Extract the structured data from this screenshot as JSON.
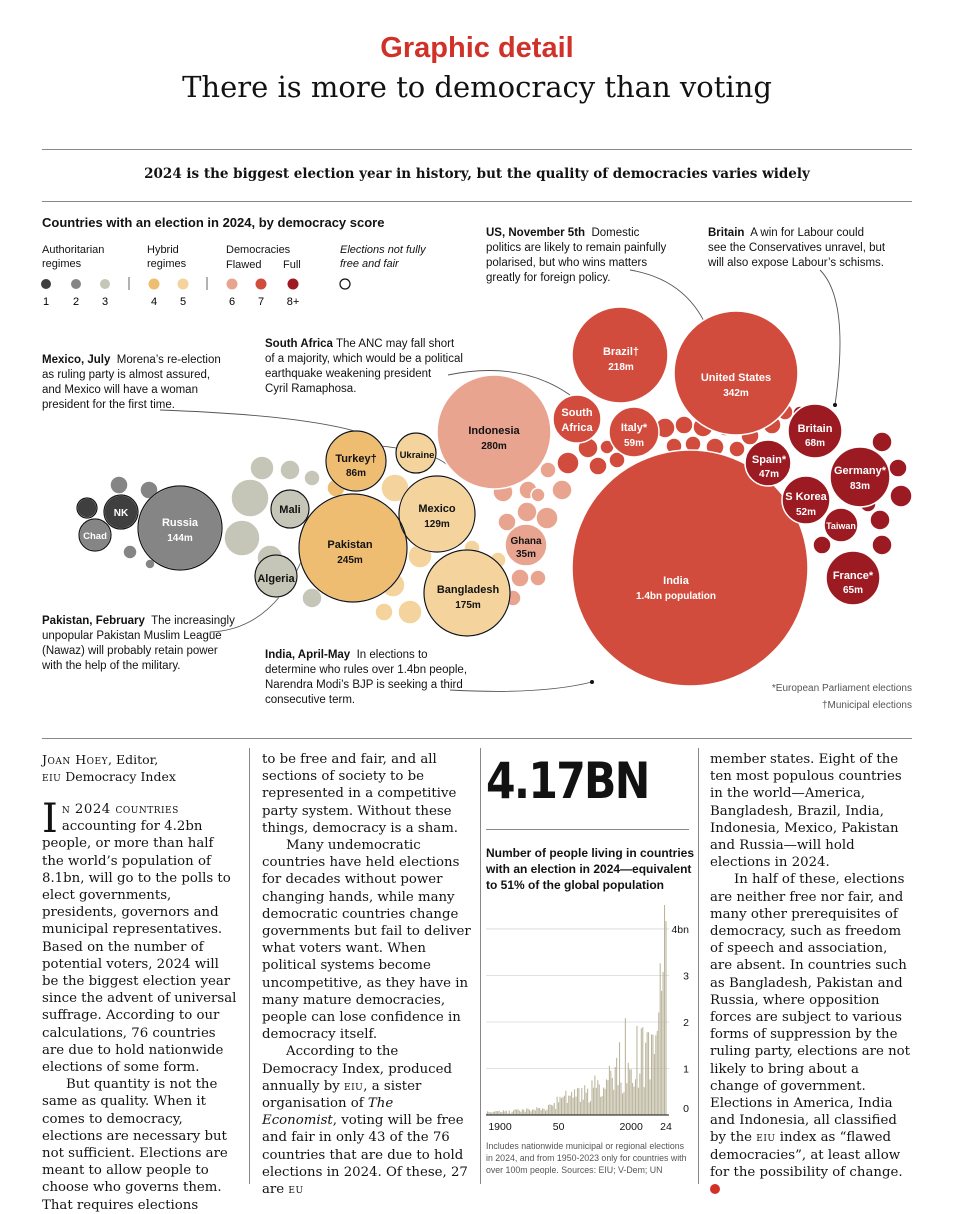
{
  "header": {
    "kicker": "Graphic detail",
    "headline": "There is more to democracy than voting",
    "subtitle": "2024 is the biggest election year in history, but the quality of democracies varies widely"
  },
  "colors": {
    "accent": "#d0322a",
    "score_1": "#3f3f3f",
    "score_2": "#858585",
    "score_3": "#c6c6b8",
    "score_4": "#efbd72",
    "score_5": "#f4d39c",
    "score_6": "#e9a490",
    "score_7": "#d24c3d",
    "score_8": "#9c1a22"
  },
  "chart_data": {
    "type": "bubble",
    "title": "Countries with an election in 2024, by democracy score",
    "legend": {
      "groups": [
        {
          "label_lines": [
            "Authoritarian",
            "regimes"
          ],
          "scores": [
            "1",
            "2",
            "3"
          ]
        },
        {
          "label_lines": [
            "Hybrid",
            "regimes"
          ],
          "scores": [
            "4",
            "5"
          ]
        },
        {
          "label_lines": [
            "Democracies"
          ],
          "sublabels": [
            "Flawed",
            "Full"
          ],
          "scores": [
            "6",
            "7",
            "8+"
          ]
        }
      ],
      "unfree_label_lines": [
        "Elections not fully",
        "free and fair"
      ]
    },
    "labeled_bubbles": [
      {
        "name": "India",
        "value_label": "1.4bn population",
        "population_m": 1400,
        "score": "7"
      },
      {
        "name": "United States",
        "value_label": "342m",
        "population_m": 342,
        "score": "7"
      },
      {
        "name": "Indonesia",
        "value_label": "280m",
        "population_m": 280,
        "score": "6"
      },
      {
        "name": "Pakistan",
        "value_label": "245m",
        "population_m": 245,
        "score": "4"
      },
      {
        "name": "Brazil†",
        "value_label": "218m",
        "population_m": 218,
        "score": "7"
      },
      {
        "name": "Bangladesh",
        "value_label": "175m",
        "population_m": 175,
        "score": "5"
      },
      {
        "name": "Russia",
        "value_label": "144m",
        "population_m": 144,
        "score": "2"
      },
      {
        "name": "Mexico",
        "value_label": "129m",
        "population_m": 129,
        "score": "5"
      },
      {
        "name": "Turkey†",
        "value_label": "86m",
        "population_m": 86,
        "score": "4"
      },
      {
        "name": "Germany*",
        "value_label": "83m",
        "population_m": 83,
        "score": "8+"
      },
      {
        "name": "Britain",
        "value_label": "68m",
        "population_m": 68,
        "score": "8+"
      },
      {
        "name": "France*",
        "value_label": "65m",
        "population_m": 65,
        "score": "8+"
      },
      {
        "name": "Italy*",
        "value_label": "59m",
        "population_m": 59,
        "score": "7"
      },
      {
        "name": "South Africa",
        "value_label": "",
        "score": "7"
      },
      {
        "name": "S Korea",
        "value_label": "52m",
        "population_m": 52,
        "score": "8+"
      },
      {
        "name": "Spain*",
        "value_label": "47m",
        "population_m": 47,
        "score": "8+"
      },
      {
        "name": "Ghana",
        "value_label": "35m",
        "population_m": 35,
        "score": "6"
      },
      {
        "name": "Ukraine",
        "value_label": "",
        "score": "5"
      },
      {
        "name": "Mali",
        "value_label": "",
        "score": "3"
      },
      {
        "name": "Algeria",
        "value_label": "",
        "score": "3"
      },
      {
        "name": "NK",
        "value_label": "",
        "score": "1"
      },
      {
        "name": "Chad",
        "value_label": "",
        "score": "2"
      },
      {
        "name": "Taiwan",
        "value_label": "",
        "score": "8+"
      }
    ],
    "annotations": [
      {
        "id": "mexico",
        "lead": "Mexico, July",
        "text_lines": [
          "Morena’s re-election",
          "as ruling party is almost assured,",
          "and Mexico will have a woman",
          "president for the first time."
        ]
      },
      {
        "id": "south-africa",
        "lead": "South Africa",
        "text_lines": [
          "The ANC may fall short",
          "of a majority, which would be a political",
          "earthquake weakening president",
          "Cyril Ramaphosa."
        ]
      },
      {
        "id": "us",
        "lead": "US, November 5th",
        "text_lines": [
          "Domestic",
          "politics are likely to remain painfully",
          "polarised, but who wins matters",
          "greatly for foreign policy."
        ]
      },
      {
        "id": "britain",
        "lead": "Britain",
        "text_lines": [
          "A win for Labour could",
          "see the Conservatives unravel, but",
          "will also expose Labour’s schisms."
        ]
      },
      {
        "id": "pakistan",
        "lead": "Pakistan, February",
        "text_lines": [
          "The increasingly",
          "unpopular Pakistan Muslim League",
          "(Nawaz) will probably retain power",
          "with the help of the military."
        ]
      },
      {
        "id": "india",
        "lead": "India, April-May",
        "text_lines": [
          "In elections to",
          "determine who rules over 1.4bn people,",
          "Narendra Modi’s BJP is seeking a third",
          "consecutive term."
        ]
      }
    ],
    "footnotes": [
      "*European Parliament elections",
      "†Municipal elections"
    ]
  },
  "stat": {
    "big_number": "4.17BN",
    "description_lines": [
      "Number of people living in countries",
      "with an election in 2024—equivalent",
      "to 51% of the global population"
    ],
    "footnote_lines": [
      "Includes nationwide municipal or regional elections",
      "in 2024, and from 1950-2023 only for countries with",
      "over 100m people.    Sources: EIU; V-Dem; UN"
    ],
    "chart_data": {
      "type": "bar",
      "x_tick_labels": [
        "1900",
        "50",
        "2000",
        "24"
      ],
      "y_tick_labels": [
        "0",
        "1",
        "2",
        "3",
        "4bn"
      ],
      "ylim": [
        0,
        4.3
      ],
      "x_range": [
        1900,
        2024
      ],
      "anchors": [
        [
          1900,
          0.05
        ],
        [
          1915,
          0.07
        ],
        [
          1930,
          0.1
        ],
        [
          1945,
          0.15
        ],
        [
          1950,
          0.3
        ],
        [
          1960,
          0.4
        ],
        [
          1970,
          0.5
        ],
        [
          1980,
          0.6
        ],
        [
          1990,
          0.85
        ],
        [
          2000,
          1.0
        ],
        [
          2010,
          1.3
        ],
        [
          2020,
          1.5
        ],
        [
          2024,
          4.17
        ]
      ]
    }
  },
  "article": {
    "byline_name": "Joan Hoey",
    "byline_role": ", Editor,",
    "byline_org_abbr": "eiu",
    "byline_org_rest": " Democracy Index",
    "col1_dropcap": "I",
    "col1_lead": "n 2024 countries",
    "col1_p1": " accounting for 4.2bn people, or more than half the world’s population of 8.1bn, will go to the polls to elect governments, presidents, governors and municipal representatives. Based on the number of potential voters, 2024 will be the biggest election year since the advent of universal suffrage. According to our calculations, 76 countries are due to hold nationwide elections of some form.",
    "col1_p2": "But quantity is not the same as quality. When it comes to democracy, elections are necessary but not sufficient. Elections are meant to allow people to choose who governs them. That requires elections",
    "col2_p1": "to be free and fair, and all sections of society to be represented in a competitive party system. Without these things, democracy is a sham.",
    "col2_p2": "Many undemocratic countries have held elections for decades without power changing hands, while many democratic countries change governments but fail to deliver what voters want. When political systems become uncompetitive, as they have in many mature democracies, people can lose confidence in democracy itself.",
    "col2_p3a": "According to the Democracy Index, produced annually by ",
    "col2_abbr1": "eiu",
    "col2_p3b": ", a sister organisation of ",
    "col2_italic": "The Economist",
    "col2_p3c": ", voting will be free and fair in only 43 of the 76 countries that are due to hold elections in 2024. Of these, 27 are ",
    "col2_abbr2": "eu",
    "col4_p1": "member states. Eight of the ten most populous countries in the world—America, Bangladesh, Brazil, India, Indonesia, Mexico, Pakistan and Russia—will hold elections in 2024.",
    "col4_p2a": "In half of these, elections are neither free nor fair, and many other prerequisites of democracy, such as freedom of speech and association, are absent. In countries such as Bangladesh, Pakistan and Russia, where opposition forces are subject to various forms of suppression by the ruling party, elections are not likely to bring about a change of government. Elections in America, India and Indonesia, all classified by the ",
    "col4_abbr": "eiu",
    "col4_p2b": " index as “flawed democracies”, at least allow for the possibility of change."
  }
}
